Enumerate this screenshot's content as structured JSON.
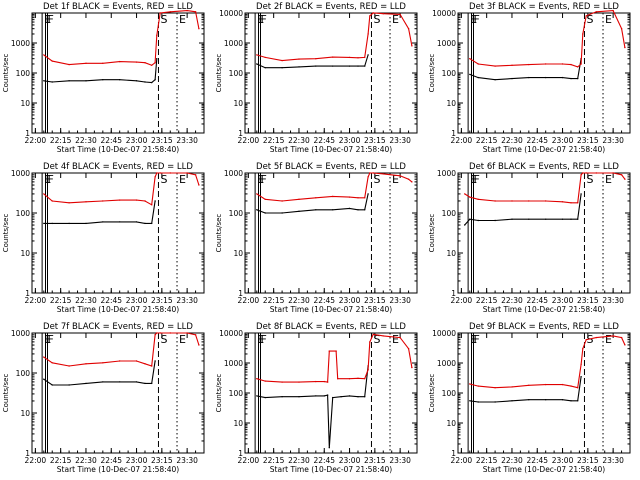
{
  "chart_data": [
    {
      "type": "line",
      "title": "Det 1f BLACK = Events, RED = LLD",
      "ylabel": "Counts/sec",
      "xlabel": "Start Time (10-Dec-07 21:58:40)",
      "yscale": "log",
      "ylim": [
        1,
        10000
      ],
      "yticks": [
        "1",
        "10",
        "100",
        "1000"
      ],
      "xticks": [
        "22:00",
        "22:15",
        "22:30",
        "22:45",
        "23:00",
        "23:15",
        "23:30"
      ],
      "xlim_minutes": [
        -2,
        100
      ],
      "markers": {
        "E": 4,
        "F": 6,
        "S": 73,
        "E2": 84
      },
      "series": [
        {
          "name": "Events",
          "color": "black",
          "x": [
            5,
            10,
            20,
            30,
            40,
            50,
            60,
            65,
            69,
            71,
            72
          ],
          "y": [
            55,
            50,
            55,
            55,
            60,
            60,
            55,
            50,
            48,
            60,
            300
          ]
        },
        {
          "name": "LLD",
          "color": "red",
          "x": [
            5,
            10,
            20,
            30,
            40,
            50,
            60,
            65,
            69,
            71,
            72,
            74,
            80,
            90,
            95,
            97
          ],
          "y": [
            400,
            250,
            190,
            210,
            210,
            240,
            230,
            220,
            180,
            220,
            1800,
            10000,
            11000,
            12000,
            11000,
            3000
          ]
        }
      ]
    },
    {
      "type": "line",
      "title": "Det 2f BLACK = Events, RED = LLD",
      "ylabel": "Counts/sec",
      "xlabel": "Start Time (10-Dec-07 21:58:40)",
      "yscale": "log",
      "ylim": [
        1,
        10000
      ],
      "yticks": [
        "1",
        "10",
        "100",
        "1000",
        "10000"
      ],
      "xticks": [
        "22:00",
        "22:15",
        "22:30",
        "22:45",
        "23:00",
        "23:15",
        "23:30"
      ],
      "xlim_minutes": [
        -2,
        100
      ],
      "markers": {
        "E": 4,
        "F": 6,
        "S": 73,
        "E2": 84
      },
      "series": [
        {
          "name": "Events",
          "color": "black",
          "x": [
            5,
            10,
            20,
            30,
            40,
            50,
            60,
            65,
            69,
            71
          ],
          "y": [
            200,
            150,
            150,
            160,
            170,
            170,
            170,
            170,
            170,
            400
          ]
        },
        {
          "name": "LLD",
          "color": "red",
          "x": [
            5,
            10,
            20,
            30,
            40,
            50,
            60,
            65,
            69,
            71,
            72,
            74,
            80,
            90,
            95,
            97
          ],
          "y": [
            400,
            330,
            260,
            290,
            300,
            340,
            330,
            320,
            330,
            2000,
            8000,
            10000,
            9500,
            9000,
            3000,
            800
          ]
        }
      ]
    },
    {
      "type": "line",
      "title": "Det 3f BLACK = Events, RED = LLD",
      "ylabel": "Counts/sec",
      "xlabel": "Start Time (10-Dec-07 21:58:40)",
      "yscale": "log",
      "ylim": [
        1,
        10000
      ],
      "yticks": [
        "1",
        "10",
        "100",
        "1000",
        "10000"
      ],
      "xticks": [
        "22:00",
        "22:15",
        "22:30",
        "22:45",
        "23:00",
        "23:15",
        "23:30"
      ],
      "xlim_minutes": [
        -2,
        100
      ],
      "markers": {
        "E": 4,
        "F": 6,
        "S": 73,
        "E2": 84
      },
      "series": [
        {
          "name": "Events",
          "color": "black",
          "x": [
            5,
            10,
            20,
            30,
            40,
            50,
            60,
            65,
            69,
            71
          ],
          "y": [
            90,
            70,
            60,
            65,
            70,
            70,
            70,
            65,
            65,
            300
          ]
        },
        {
          "name": "LLD",
          "color": "red",
          "x": [
            5,
            10,
            20,
            30,
            40,
            50,
            60,
            65,
            69,
            71,
            72,
            74,
            80,
            90,
            95,
            97
          ],
          "y": [
            300,
            200,
            170,
            180,
            190,
            200,
            200,
            190,
            160,
            200,
            2000,
            8000,
            11000,
            12000,
            3000,
            700
          ]
        }
      ]
    },
    {
      "type": "line",
      "title": "Det 4f BLACK = Events, RED = LLD",
      "ylabel": "Counts/sec",
      "xlabel": "Start Time (10-Dec-07 21:58:40)",
      "yscale": "log",
      "ylim": [
        1,
        1000
      ],
      "yticks": [
        "1",
        "10",
        "100",
        "1000"
      ],
      "xticks": [
        "22:00",
        "22:15",
        "22:30",
        "22:45",
        "23:00",
        "23:15",
        "23:30"
      ],
      "xlim_minutes": [
        -2,
        100
      ],
      "markers": {
        "E": 4,
        "F": 6,
        "S": 73,
        "E2": 84
      },
      "series": [
        {
          "name": "Events",
          "color": "black",
          "x": [
            5,
            10,
            20,
            30,
            40,
            50,
            60,
            65,
            69,
            71
          ],
          "y": [
            55,
            55,
            55,
            55,
            60,
            60,
            60,
            55,
            55,
            200
          ]
        },
        {
          "name": "LLD",
          "color": "red",
          "x": [
            5,
            10,
            20,
            30,
            40,
            50,
            60,
            65,
            69,
            71,
            72,
            74,
            80,
            90,
            95,
            97
          ],
          "y": [
            300,
            200,
            180,
            190,
            200,
            210,
            210,
            200,
            160,
            800,
            1000,
            1000,
            1000,
            1000,
            900,
            500
          ]
        }
      ]
    },
    {
      "type": "line",
      "title": "Det 5f BLACK = Events, RED = LLD",
      "ylabel": "Counts/sec",
      "xlabel": "Start Time (10-Dec-07 21:58:40)",
      "yscale": "log",
      "ylim": [
        1,
        1000
      ],
      "yticks": [
        "1",
        "10",
        "100",
        "1000"
      ],
      "xticks": [
        "22:00",
        "22:15",
        "22:30",
        "22:45",
        "23:00",
        "23:15",
        "23:30"
      ],
      "xlim_minutes": [
        -2,
        100
      ],
      "markers": {
        "E": 4,
        "F": 6,
        "S": 73,
        "E2": 84
      },
      "series": [
        {
          "name": "Events",
          "color": "black",
          "x": [
            5,
            10,
            20,
            30,
            40,
            50,
            60,
            65,
            69,
            71
          ],
          "y": [
            120,
            100,
            100,
            110,
            120,
            120,
            130,
            120,
            120,
            300
          ]
        },
        {
          "name": "LLD",
          "color": "red",
          "x": [
            5,
            10,
            20,
            30,
            40,
            50,
            60,
            65,
            69,
            71,
            72,
            74,
            80,
            90,
            95,
            97
          ],
          "y": [
            300,
            220,
            200,
            220,
            240,
            260,
            250,
            240,
            240,
            800,
            1000,
            1000,
            950,
            850,
            700,
            600
          ]
        }
      ]
    },
    {
      "type": "line",
      "title": "Det 6f BLACK = Events, RED = LLD",
      "ylabel": "Counts/sec",
      "xlabel": "Start Time (10-Dec-07 21:58:40)",
      "yscale": "log",
      "ylim": [
        1,
        1000
      ],
      "yticks": [
        "1",
        "10",
        "100",
        "1000"
      ],
      "xticks": [
        "22:00",
        "22:15",
        "22:30",
        "22:45",
        "23:00",
        "23:15",
        "23:30"
      ],
      "xlim_minutes": [
        -2,
        100
      ],
      "markers": {
        "E": 4,
        "F": 6,
        "S": 73,
        "E2": 84
      },
      "series": [
        {
          "name": "Events",
          "color": "black",
          "x": [
            2,
            5,
            10,
            20,
            30,
            40,
            50,
            60,
            65,
            69,
            71
          ],
          "y": [
            50,
            70,
            65,
            65,
            70,
            70,
            70,
            70,
            70,
            70,
            300
          ]
        },
        {
          "name": "LLD",
          "color": "red",
          "x": [
            2,
            5,
            10,
            20,
            30,
            40,
            50,
            60,
            65,
            69,
            71,
            72,
            74,
            80,
            90,
            95,
            97
          ],
          "y": [
            300,
            250,
            220,
            200,
            200,
            200,
            200,
            190,
            180,
            180,
            900,
            1000,
            1000,
            1000,
            1000,
            900,
            700
          ]
        }
      ]
    },
    {
      "type": "line",
      "title": "Det 7f BLACK = Events, RED = LLD",
      "ylabel": "Counts/sec",
      "xlabel": "Start Time (10-Dec-07 21:58:40)",
      "yscale": "log",
      "ylim": [
        1,
        1000
      ],
      "yticks": [
        "1",
        "10",
        "100",
        "1000"
      ],
      "xticks": [
        "22:00",
        "22:15",
        "22:30",
        "22:45",
        "23:00",
        "23:15",
        "23:30"
      ],
      "xlim_minutes": [
        -2,
        100
      ],
      "markers": {
        "E": 4,
        "F": 6,
        "S": 73,
        "E2": 84
      },
      "series": [
        {
          "name": "Events",
          "color": "black",
          "x": [
            5,
            10,
            20,
            30,
            40,
            50,
            60,
            65,
            69,
            71
          ],
          "y": [
            70,
            50,
            50,
            55,
            60,
            60,
            60,
            55,
            55,
            200
          ]
        },
        {
          "name": "LLD",
          "color": "red",
          "x": [
            5,
            10,
            20,
            30,
            40,
            50,
            60,
            65,
            69,
            71,
            72,
            74,
            80,
            90,
            95,
            97
          ],
          "y": [
            250,
            180,
            150,
            170,
            180,
            200,
            200,
            170,
            150,
            900,
            1000,
            1000,
            1000,
            1000,
            900,
            500
          ]
        }
      ]
    },
    {
      "type": "line",
      "title": "Det 8f BLACK = Events, RED = LLD",
      "ylabel": "Counts/sec",
      "xlabel": "Start Time (10-Dec-07 21:58:40)",
      "yscale": "log",
      "ylim": [
        1,
        10000
      ],
      "yticks": [
        "1",
        "10",
        "100",
        "1000",
        "10000"
      ],
      "xticks": [
        "22:00",
        "22:15",
        "22:30",
        "22:45",
        "23:00",
        "23:15",
        "23:30"
      ],
      "xlim_minutes": [
        -2,
        100
      ],
      "markers": {
        "E": 4,
        "F": 6,
        "S": 73,
        "E2": 84
      },
      "series": [
        {
          "name": "Events",
          "color": "black",
          "x": [
            5,
            10,
            20,
            30,
            40,
            45,
            47,
            48,
            50,
            55,
            60,
            65,
            69,
            71
          ],
          "y": [
            80,
            70,
            75,
            75,
            80,
            80,
            85,
            1.5,
            70,
            75,
            80,
            75,
            75,
            800
          ]
        },
        {
          "name": "LLD",
          "color": "red",
          "x": [
            5,
            10,
            20,
            30,
            40,
            45,
            47,
            48,
            52,
            53,
            60,
            65,
            69,
            71,
            72,
            74,
            80,
            90,
            95,
            97
          ],
          "y": [
            300,
            250,
            230,
            230,
            240,
            240,
            230,
            2500,
            2500,
            300,
            300,
            310,
            300,
            600,
            5000,
            9000,
            8000,
            7000,
            3000,
            700
          ]
        }
      ]
    },
    {
      "type": "line",
      "title": "Det 9f BLACK = Events, RED = LLD",
      "ylabel": "Counts/sec",
      "xlabel": "Start Time (10-Dec-07 21:58:40)",
      "yscale": "log",
      "ylim": [
        1,
        10000
      ],
      "yticks": [
        "1",
        "10",
        "100",
        "1000",
        "10000"
      ],
      "xticks": [
        "22:00",
        "22:15",
        "22:30",
        "22:45",
        "23:00",
        "23:15",
        "23:30"
      ],
      "xlim_minutes": [
        -2,
        100
      ],
      "markers": {
        "E": 4,
        "F": 6,
        "S": 73,
        "E2": 84
      },
      "series": [
        {
          "name": "Events",
          "color": "black",
          "x": [
            5,
            10,
            20,
            30,
            40,
            50,
            60,
            65,
            69,
            71
          ],
          "y": [
            55,
            50,
            50,
            55,
            60,
            60,
            60,
            55,
            55,
            350
          ]
        },
        {
          "name": "LLD",
          "color": "red",
          "x": [
            5,
            10,
            20,
            30,
            40,
            50,
            60,
            65,
            69,
            71,
            72,
            74,
            80,
            90,
            95,
            97
          ],
          "y": [
            200,
            170,
            150,
            160,
            180,
            190,
            190,
            170,
            150,
            900,
            3000,
            6000,
            7000,
            8000,
            7000,
            4000
          ]
        }
      ]
    }
  ]
}
